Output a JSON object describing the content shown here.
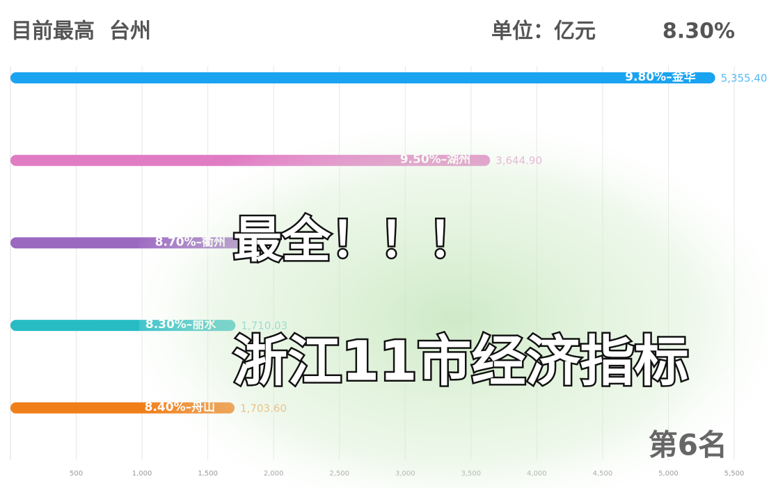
{
  "chart_data": {
    "type": "bar",
    "title": "目前最高  台州",
    "unit": "单位：亿元",
    "current_rate": "8.30%",
    "categories": [
      "9.80%–金华",
      "9.50%–湖州",
      "8.70%–衢州",
      "8.30%–丽水",
      "8.40%–舟山"
    ],
    "values": [
      5355.4,
      3644.9,
      1783,
      1710.03,
      1703.6
    ],
    "value_labels": [
      "5,355.40",
      "3,644.90",
      null,
      "1,710.03",
      "1,703.60"
    ],
    "colors": [
      "#1aa3f0",
      "#e07cc3",
      "#9b68c0",
      "#27bcc4",
      "#f07f1a"
    ],
    "xlim": [
      0,
      5500
    ],
    "xticks": [
      500,
      {
        "value": 1000,
        "label": "1,000"
      },
      {
        "value": 1500,
        "label": "1,500"
      },
      {
        "value": 2000,
        "label": "2,000"
      },
      {
        "value": 2500,
        "label": "2,500"
      },
      {
        "value": 3000,
        "label": "3,000"
      },
      {
        "value": 3500,
        "label": "3,500"
      },
      {
        "value": 4000,
        "label": "4,000"
      },
      {
        "value": 4500,
        "label": "4,500"
      },
      {
        "value": 5000,
        "label": "5,000"
      },
      {
        "value": 5500,
        "label": "5,500"
      }
    ],
    "grid": true,
    "annotations": [
      "最全！！！",
      "浙江11市经济指标",
      "第6名"
    ]
  }
}
